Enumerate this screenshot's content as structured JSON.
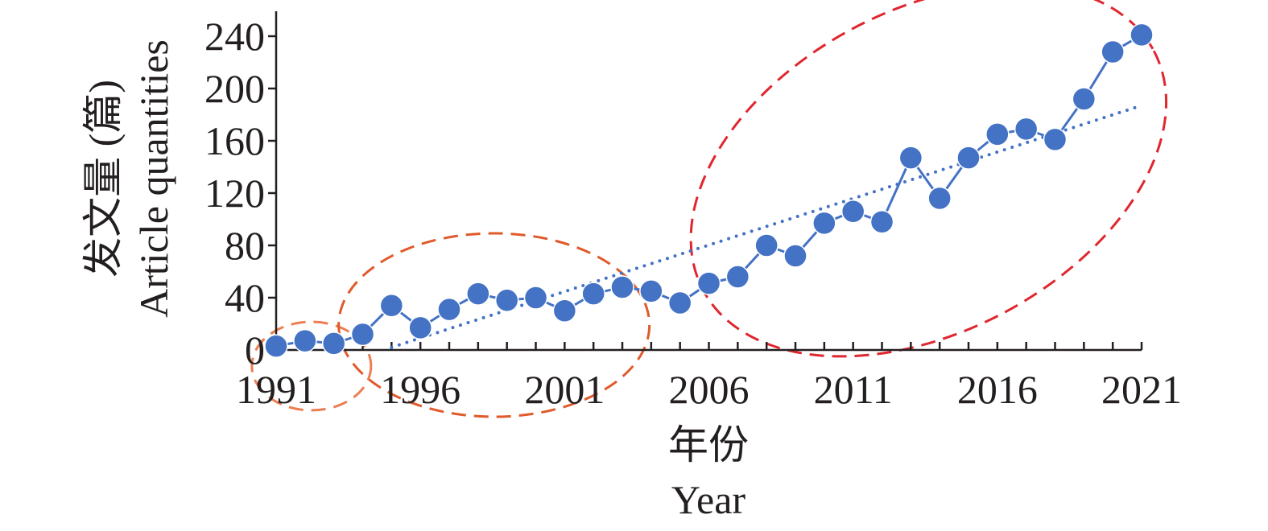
{
  "chart_data": {
    "type": "line",
    "title": "",
    "xlabel_cn": "年份",
    "xlabel": "Year",
    "ylabel_cn": "发文量 (篇)",
    "ylabel": "Article quantities",
    "xlim": [
      1991,
      2021
    ],
    "ylim": [
      0,
      260
    ],
    "x_ticks": [
      1991,
      1996,
      2001,
      2006,
      2011,
      2016,
      2021
    ],
    "y_ticks": [
      0,
      40,
      80,
      120,
      160,
      200,
      240
    ],
    "grid": false,
    "legend": "none",
    "series": [
      {
        "x": [
          1991,
          1992,
          1993,
          1994,
          1995,
          1996,
          1997,
          1998,
          1999,
          2000,
          2001,
          2002,
          2003,
          2004,
          2005,
          2006,
          2007,
          2008,
          2009,
          2010,
          2011,
          2012,
          2013,
          2014,
          2015,
          2016,
          2017,
          2018,
          2019,
          2020,
          2021
        ],
        "values": [
          3,
          7,
          5,
          12,
          34,
          17,
          31,
          43,
          38,
          40,
          30,
          43,
          48,
          45,
          36,
          51,
          56,
          80,
          72,
          97,
          106,
          98,
          147,
          116,
          147,
          165,
          169,
          161,
          192,
          228,
          241
        ],
        "style": "line-with-markers"
      },
      {
        "x": [
          1995,
          2021
        ],
        "values": [
          2,
          187
        ],
        "style": "dotted-trendline"
      }
    ],
    "annotations": [
      {
        "shape": "dashed-ellipse",
        "period": [
          1991,
          1993
        ]
      },
      {
        "shape": "dashed-ellipse",
        "period": [
          1994,
          2004
        ]
      },
      {
        "shape": "dashed-ellipse",
        "period": [
          2005,
          2021
        ]
      }
    ],
    "colors": {
      "series": "#4472c4",
      "trend": "#4472c4",
      "ellipse_early": "#ed7d52",
      "ellipse_mid": "#e05a2b",
      "ellipse_late": "#e0262e",
      "axis": "#231f20"
    }
  }
}
